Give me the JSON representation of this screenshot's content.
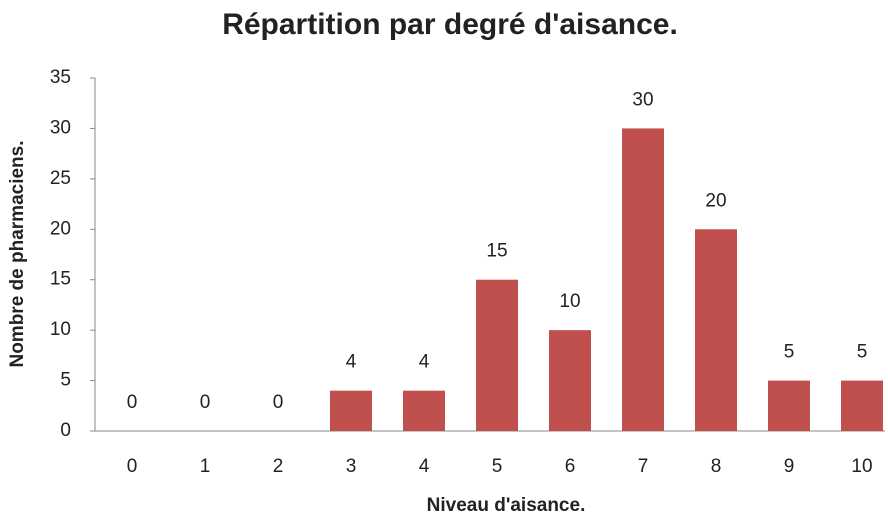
{
  "chart_data": {
    "type": "bar",
    "title": "Répartition par degré d'aisance.",
    "x_label": "Niveau d'aisance.",
    "y_label": "Nombre de pharmaciens.",
    "categories": [
      "0",
      "1",
      "2",
      "3",
      "4",
      "5",
      "6",
      "7",
      "8",
      "9",
      "10"
    ],
    "values": [
      0,
      0,
      0,
      4,
      4,
      15,
      10,
      30,
      20,
      5,
      5
    ],
    "color": "#c0504d",
    "ylim": [
      0,
      35
    ],
    "yticks": [
      0,
      5,
      10,
      15,
      20,
      25,
      30,
      35
    ],
    "grid": false
  }
}
